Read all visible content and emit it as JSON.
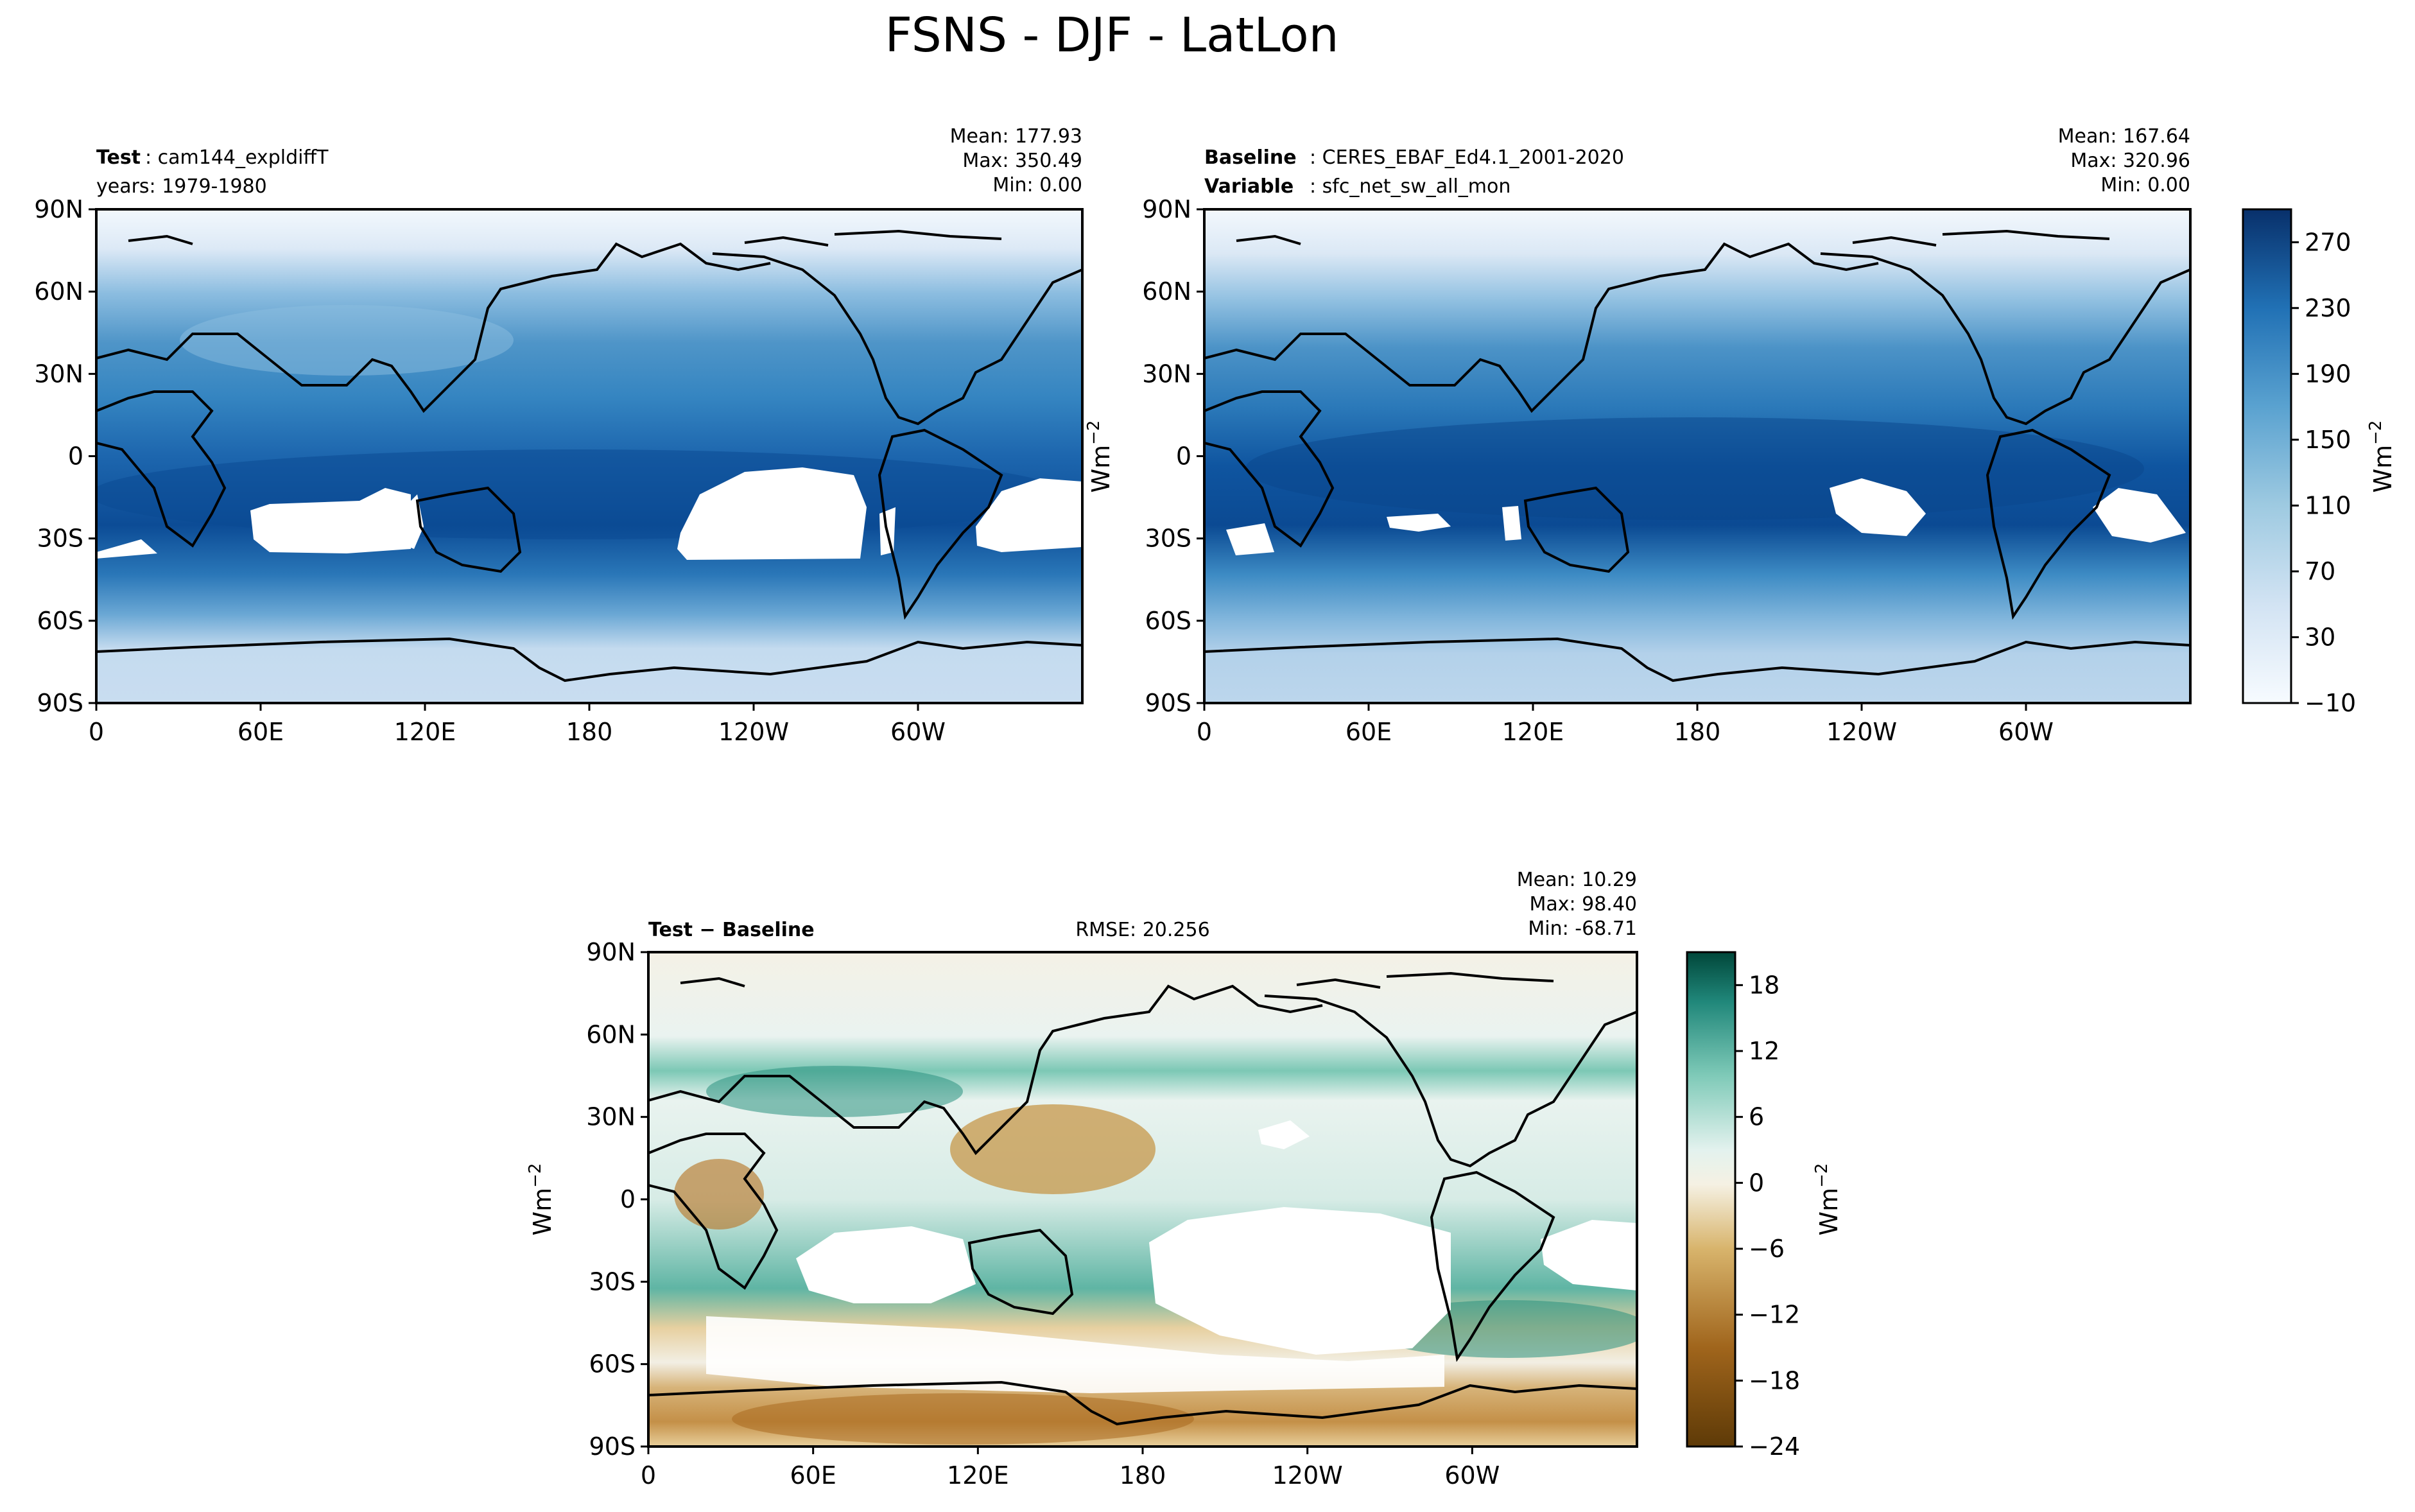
{
  "figure_title": "FSNS - DJF - LatLon",
  "chart_data": [
    {
      "type": "heatmap",
      "panel": "test",
      "label_bold": "Test",
      "label_text": ": cam144_expldiffT",
      "line2_text": "years: 1979-1980",
      "stats": {
        "mean": "Mean: 177.93",
        "max": "Max: 350.49",
        "min": "Min:  0.00"
      },
      "x_ticks": [
        "0",
        "60E",
        "120E",
        "180",
        "120W",
        "60W"
      ],
      "y_ticks": [
        "90N",
        "60N",
        "30N",
        "0",
        "30S",
        "60S",
        "90S"
      ],
      "xlim": [
        0,
        360
      ],
      "ylim": [
        -90,
        90
      ],
      "ylabel": "Wm",
      "ylabel_sup": "−2"
    },
    {
      "type": "heatmap",
      "panel": "baseline",
      "label_bold": "Baseline",
      "label_text": ": CERES_EBAF_Ed4.1_2001-2020",
      "line2_bold": "Variable",
      "line2_text": ": sfc_net_sw_all_mon",
      "stats": {
        "mean": "Mean: 167.64",
        "max": "Max: 320.96",
        "min": "Min:  0.00"
      },
      "x_ticks": [
        "0",
        "60E",
        "120E",
        "180",
        "120W",
        "60W"
      ],
      "y_ticks": [
        "90N",
        "60N",
        "30N",
        "0",
        "30S",
        "60S",
        "90S"
      ],
      "xlim": [
        0,
        360
      ],
      "ylim": [
        -90,
        90
      ],
      "colorbar": {
        "ticks": [
          "270",
          "230",
          "190",
          "150",
          "110",
          "70",
          "30",
          "−10"
        ],
        "range": [
          -10,
          290
        ],
        "label": "Wm",
        "label_sup": "−2"
      }
    },
    {
      "type": "heatmap",
      "panel": "difference",
      "label_bold": "Test − Baseline",
      "rmse": "RMSE: 20.256",
      "stats": {
        "mean": "Mean: 10.29",
        "max": "Max: 98.40",
        "min": "Min: -68.71"
      },
      "x_ticks": [
        "0",
        "60E",
        "120E",
        "180",
        "120W",
        "60W"
      ],
      "y_ticks": [
        "90N",
        "60N",
        "30N",
        "0",
        "30S",
        "60S",
        "90S"
      ],
      "xlim": [
        0,
        360
      ],
      "ylim": [
        -90,
        90
      ],
      "ylabel": "Wm",
      "ylabel_sup": "−2",
      "colorbar": {
        "ticks": [
          "18",
          "12",
          "6",
          "0",
          "−6",
          "−12",
          "−18",
          "−24"
        ],
        "range": [
          -24,
          21
        ],
        "label": "Wm",
        "label_sup": "−2"
      }
    }
  ],
  "colors": {
    "blues": [
      "#f7fbff",
      "#e3eef9",
      "#cfe1f2",
      "#b5d4e9",
      "#93c3df",
      "#6daed5",
      "#4b97c9",
      "#2f7ebc",
      "#1864aa",
      "#0a4a90",
      "#08306b"
    ],
    "diverging_neg": [
      "#f5efdd",
      "#ebd9a8",
      "#dbbd79",
      "#c99a4e",
      "#b27a2c",
      "#8f5a14",
      "#6b3e08"
    ],
    "diverging_pos": [
      "#e7f3ef",
      "#bfe4da",
      "#8dd0c1",
      "#4fb0a0",
      "#20877a",
      "#0b6a5d",
      "#01473a"
    ],
    "land_edge": "#000000"
  }
}
